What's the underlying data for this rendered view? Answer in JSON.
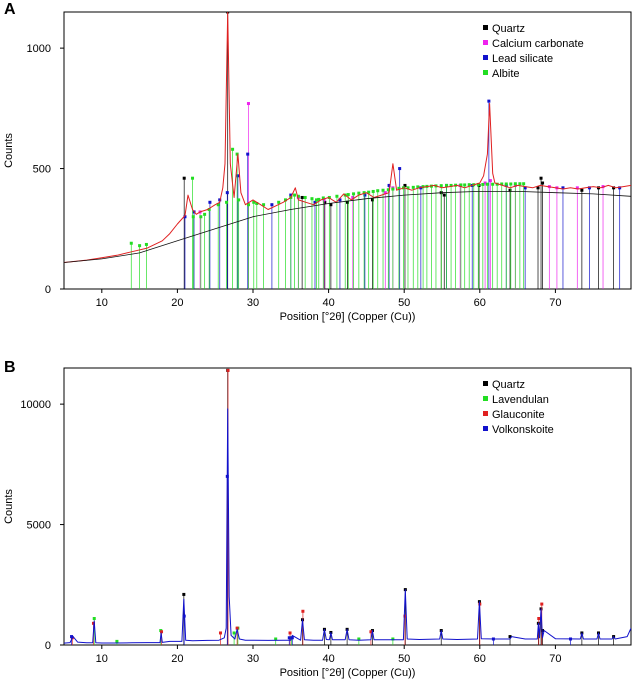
{
  "chart_data": [
    {
      "type": "line",
      "panel_label": "A",
      "title": "",
      "xlabel": "Position [°2θ] (Copper (Cu))",
      "ylabel": "Counts",
      "xlim": [
        5,
        80
      ],
      "ylim": [
        0,
        1150
      ],
      "xticks": [
        10,
        20,
        30,
        40,
        50,
        60,
        70
      ],
      "yticks": [
        0,
        500,
        1000
      ],
      "legend_position": "top-right",
      "grid": false,
      "legend": [
        {
          "label": "Quartz",
          "color": "#000000"
        },
        {
          "label": "Calcium carbonate",
          "color": "#ee22ee"
        },
        {
          "label": "Lead silicate",
          "color": "#1111cc"
        },
        {
          "label": "Albite",
          "color": "#22dd22"
        }
      ],
      "series": [
        {
          "color": "#e02020",
          "x": [
            5,
            8,
            10,
            12,
            14,
            16,
            18,
            19,
            20,
            21,
            21.4,
            22,
            22.5,
            23,
            24,
            25,
            25.6,
            26,
            26.3,
            26.65,
            27,
            27.5,
            28,
            28.4,
            29,
            29.5,
            30,
            31,
            32,
            33,
            34,
            35,
            35.6,
            36,
            37,
            38,
            39,
            40,
            41,
            42,
            43,
            44,
            45,
            46,
            47,
            48,
            48.5,
            49,
            50,
            51,
            52,
            53,
            54,
            55,
            56,
            57,
            58,
            59,
            60,
            60.5,
            61,
            61.3,
            61.7,
            62,
            63,
            64,
            65,
            66,
            67,
            68,
            69,
            70,
            71,
            72,
            73,
            74,
            75,
            76,
            77,
            78,
            79,
            80
          ],
          "values": [
            110,
            120,
            130,
            140,
            155,
            170,
            200,
            230,
            270,
            305,
            390,
            330,
            310,
            320,
            330,
            350,
            360,
            420,
            520,
            1150,
            520,
            380,
            560,
            400,
            350,
            360,
            370,
            350,
            330,
            345,
            360,
            380,
            420,
            370,
            360,
            350,
            370,
            380,
            360,
            395,
            370,
            390,
            400,
            380,
            390,
            400,
            520,
            410,
            420,
            410,
            420,
            425,
            430,
            420,
            425,
            430,
            420,
            430,
            440,
            470,
            560,
            770,
            480,
            440,
            430,
            420,
            430,
            425,
            420,
            430,
            425,
            420,
            415,
            420,
            415,
            420,
            425,
            420,
            430,
            420,
            425,
            430
          ]
        },
        {
          "color": "#111111",
          "x": [
            5,
            10,
            15,
            20,
            25,
            30,
            35,
            40,
            45,
            50,
            55,
            60,
            65,
            70,
            75,
            80
          ],
          "values": [
            110,
            125,
            150,
            200,
            250,
            300,
            330,
            355,
            375,
            390,
            400,
            405,
            405,
            400,
            395,
            385
          ]
        }
      ],
      "phase_peaks": [
        {
          "phase": "Quartz",
          "color": "#000000",
          "x": [
            20.9,
            26.65,
            36.5,
            39.5,
            40.3,
            42.5,
            45.8,
            50.1,
            54.9,
            55.3,
            59.9,
            64.0,
            67.7,
            68.1,
            68.3,
            73.5,
            75.7,
            77.7
          ],
          "values": [
            460,
            1150,
            380,
            360,
            350,
            360,
            370,
            430,
            400,
            390,
            430,
            410,
            420,
            460,
            440,
            410,
            420,
            420
          ]
        },
        {
          "phase": "Calcium carbonate",
          "color": "#ee22ee",
          "x": [
            23.0,
            29.4,
            36.0,
            39.4,
            43.2,
            47.5,
            48.5,
            57.4,
            60.7,
            61.4,
            64.7,
            69.2,
            70.2,
            72.9,
            76.3
          ],
          "values": [
            320,
            770,
            380,
            370,
            380,
            400,
            420,
            430,
            440,
            450,
            430,
            425,
            420,
            420,
            425
          ]
        },
        {
          "phase": "Lead silicate",
          "color": "#1111cc",
          "x": [
            21.0,
            22.2,
            24.3,
            25.6,
            26.6,
            28.0,
            29.3,
            32.5,
            35.0,
            38.2,
            41.5,
            44.8,
            48.0,
            49.4,
            52.2,
            55.6,
            59.0,
            61.2,
            63.5,
            66.0,
            71.0,
            74.5,
            78.5
          ],
          "values": [
            300,
            320,
            360,
            370,
            400,
            470,
            560,
            350,
            390,
            360,
            370,
            390,
            430,
            500,
            420,
            430,
            430,
            780,
            430,
            420,
            420,
            420,
            420
          ]
        },
        {
          "phase": "Albite",
          "color": "#22dd22",
          "x": [
            13.9,
            15.0,
            15.9,
            22.0,
            22.1,
            23.1,
            23.6,
            24.2,
            25.4,
            26.5,
            27.3,
            27.9,
            28.1,
            29.4,
            30.1,
            30.5,
            31.4,
            33.4,
            34.3,
            35.0,
            35.5,
            36.0,
            36.9,
            37.8,
            38.4,
            38.7,
            39.3,
            40.1,
            41.1,
            42.2,
            42.6,
            43.3,
            44.0,
            44.7,
            45.3,
            45.9,
            46.5,
            47.2,
            47.9,
            48.5,
            49.3,
            49.9,
            50.5,
            51.2,
            51.8,
            52.5,
            53.0,
            53.6,
            54.2,
            54.9,
            55.6,
            56.2,
            56.8,
            57.5,
            58.0,
            58.6,
            59.2,
            59.8,
            60.4,
            61.0,
            61.7,
            62.3,
            62.9,
            63.5,
            64.1,
            64.7,
            65.3,
            65.8
          ],
          "values": [
            190,
            180,
            185,
            460,
            300,
            300,
            310,
            330,
            350,
            360,
            580,
            560,
            370,
            350,
            360,
            355,
            350,
            360,
            370,
            380,
            390,
            385,
            380,
            375,
            370,
            372,
            378,
            380,
            385,
            390,
            392,
            395,
            398,
            400,
            402,
            405,
            408,
            410,
            412,
            415,
            418,
            420,
            420,
            422,
            424,
            425,
            426,
            427,
            428,
            429,
            430,
            430,
            431,
            432,
            432,
            433,
            433,
            434,
            434,
            435,
            435,
            435,
            436,
            436,
            436,
            437,
            437,
            437
          ]
        }
      ]
    },
    {
      "type": "line",
      "panel_label": "B",
      "title": "",
      "xlabel": "Position [°2θ] (Copper (Cu))",
      "ylabel": "Counts",
      "xlim": [
        5,
        80
      ],
      "ylim": [
        0,
        11500
      ],
      "xticks": [
        10,
        20,
        30,
        40,
        50,
        60,
        70
      ],
      "yticks": [
        0,
        5000,
        10000
      ],
      "legend_position": "top-right",
      "grid": false,
      "legend": [
        {
          "label": "Quartz",
          "color": "#000000"
        },
        {
          "label": "Lavendulan",
          "color": "#22dd22"
        },
        {
          "label": "Glauconite",
          "color": "#e02020"
        },
        {
          "label": "Volkonskoite",
          "color": "#1111cc"
        }
      ],
      "series": [
        {
          "color": "#1111cc",
          "x": [
            5,
            5.8,
            6.2,
            6.8,
            8,
            8.8,
            9.0,
            9.2,
            10,
            12,
            14,
            16,
            17.7,
            17.85,
            18.0,
            19,
            20.6,
            20.85,
            21.1,
            22,
            24,
            25.5,
            26.2,
            26.45,
            26.65,
            26.85,
            27.1,
            27.6,
            27.9,
            28.2,
            29,
            30,
            32,
            34,
            35.0,
            35.2,
            36.3,
            36.55,
            36.8,
            38,
            39.2,
            39.45,
            39.7,
            40.1,
            40.3,
            40.5,
            42.2,
            42.45,
            42.7,
            44,
            45.6,
            45.8,
            46.0,
            48,
            49.9,
            50.15,
            50.4,
            52,
            54.7,
            54.9,
            55.1,
            57,
            59.7,
            59.95,
            60.2,
            62,
            64.0,
            64.2,
            66,
            67.6,
            67.75,
            67.9,
            68.1,
            68.3,
            68.5,
            70,
            73.3,
            73.5,
            73.7,
            75.5,
            75.7,
            75.9,
            77.5,
            77.7,
            77.9,
            79.5,
            80
          ],
          "values": [
            80,
            100,
            350,
            120,
            90,
            95,
            1000,
            95,
            85,
            85,
            90,
            100,
            100,
            500,
            110,
            150,
            150,
            1900,
            200,
            180,
            190,
            200,
            300,
            700,
            9800,
            2000,
            400,
            250,
            650,
            250,
            200,
            200,
            190,
            200,
            200,
            400,
            200,
            1050,
            220,
            200,
            200,
            650,
            230,
            220,
            520,
            220,
            220,
            650,
            220,
            200,
            220,
            600,
            220,
            220,
            220,
            2300,
            250,
            230,
            250,
            600,
            250,
            230,
            250,
            1800,
            260,
            250,
            250,
            350,
            250,
            250,
            900,
            300,
            1500,
            300,
            600,
            260,
            250,
            500,
            250,
            250,
            500,
            250,
            250,
            350,
            250,
            350,
            700
          ]
        }
      ],
      "phase_peaks": [
        {
          "phase": "Quartz",
          "color": "#000000",
          "x": [
            20.85,
            26.65,
            36.55,
            39.45,
            40.3,
            42.45,
            45.8,
            50.15,
            54.9,
            59.95,
            64.0,
            67.75,
            68.1,
            68.3,
            73.5,
            75.7,
            77.7
          ],
          "values": [
            2100,
            11400,
            1050,
            650,
            520,
            650,
            600,
            2300,
            600,
            1800,
            350,
            900,
            1500,
            600,
            500,
            500,
            350
          ]
        },
        {
          "phase": "Lavendulan",
          "color": "#22dd22",
          "x": [
            9.0,
            12.0,
            17.8,
            27.5,
            28.0,
            33.0,
            35.1,
            44.0,
            48.5
          ],
          "values": [
            1100,
            150,
            600,
            500,
            700,
            250,
            300,
            250,
            250
          ]
        },
        {
          "phase": "Glauconite",
          "color": "#e02020",
          "x": [
            6.1,
            8.9,
            17.9,
            25.7,
            26.7,
            27.9,
            34.9,
            36.6,
            45.6,
            50.1,
            60.0,
            67.8,
            68.2
          ],
          "values": [
            300,
            900,
            550,
            500,
            11400,
            700,
            500,
            1400,
            550,
            1200,
            1700,
            1100,
            1700
          ]
        },
        {
          "phase": "Volkonskoite",
          "color": "#1111cc",
          "x": [
            6.0,
            20.9,
            26.6,
            34.8,
            35.2,
            61.8,
            72.0
          ],
          "values": [
            350,
            1200,
            7000,
            300,
            300,
            250,
            250
          ]
        }
      ]
    }
  ]
}
